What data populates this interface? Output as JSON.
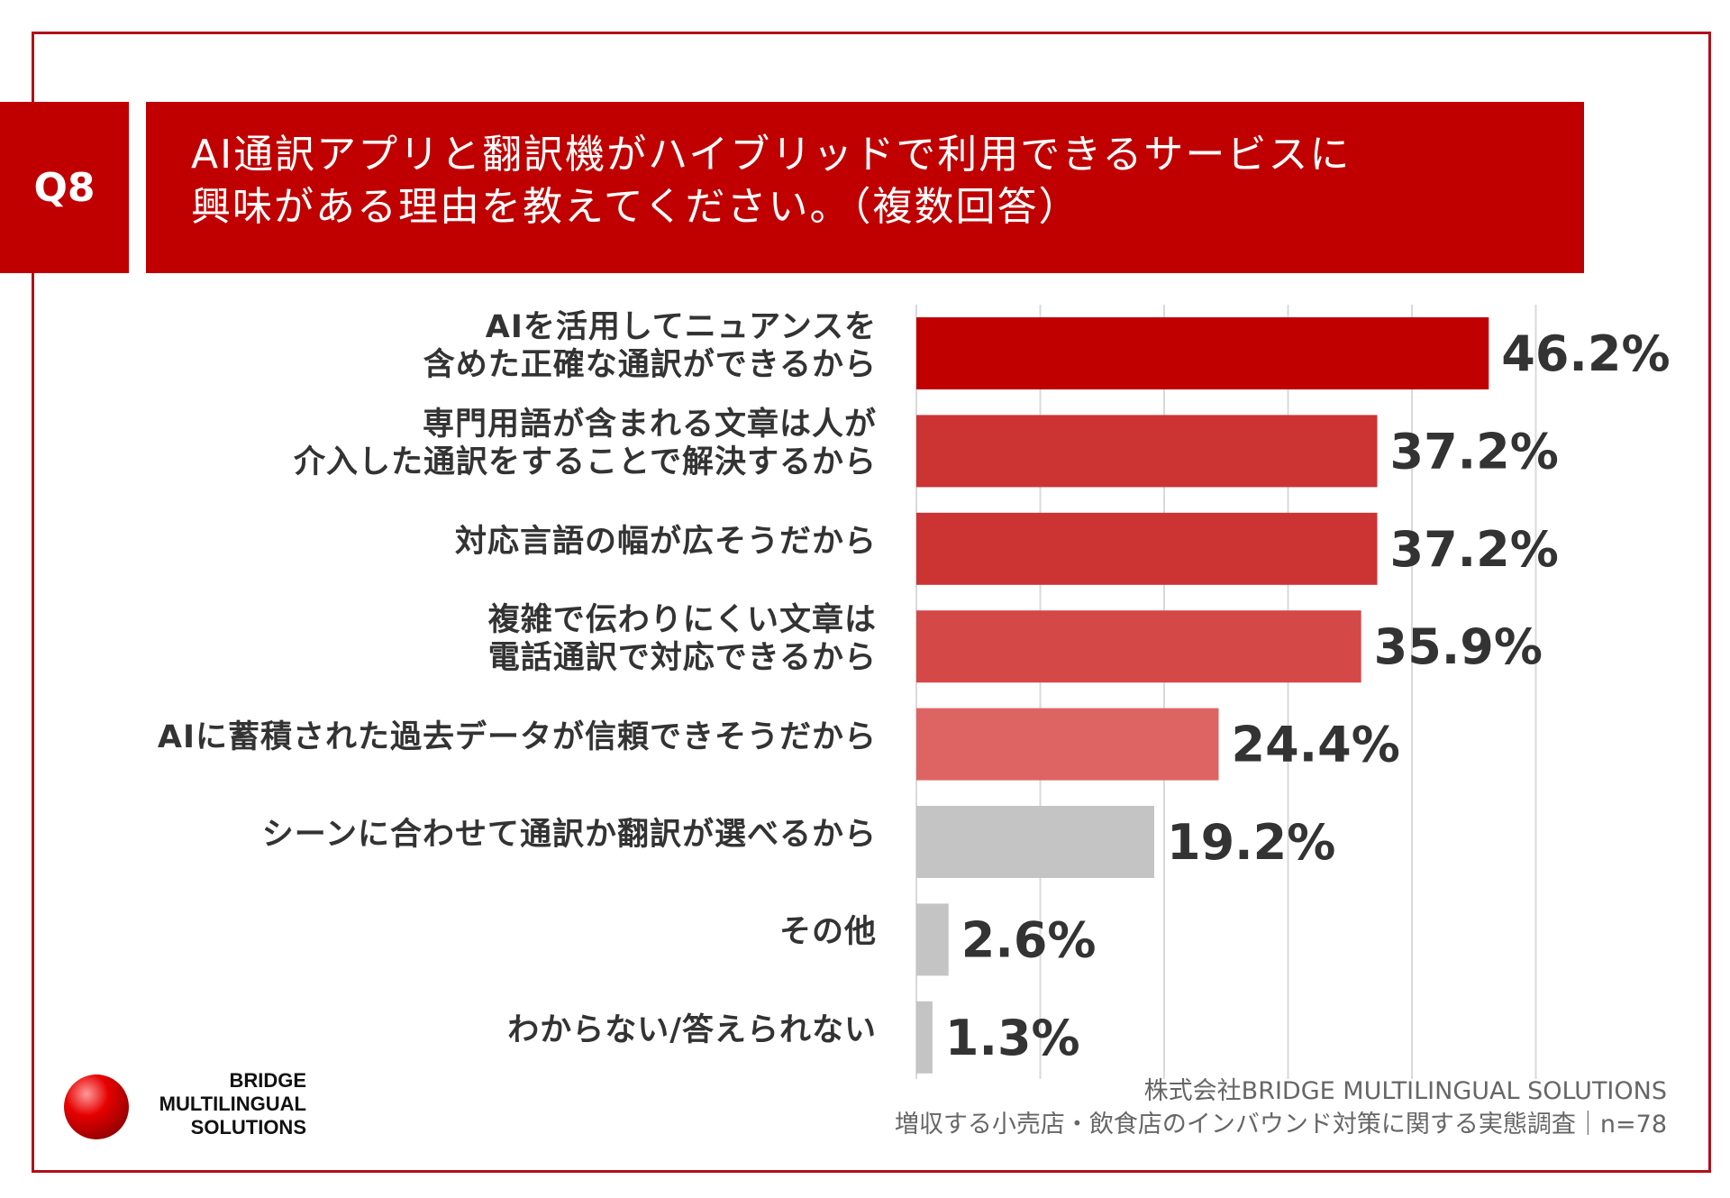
{
  "question": {
    "badge": "Q8",
    "title_line1": "AI通訳アプリと翻訳機がハイブリッドで利用できるサービスに",
    "title_line2": "興味がある理由を教えてください。（複数回答）",
    "accent_color": "#c00000"
  },
  "chart_data": {
    "type": "bar",
    "orientation": "horizontal",
    "title": "AI通訳アプリと翻訳機がハイブリッドで利用できるサービスに興味がある理由を教えてください。（複数回答）",
    "xlim": [
      0,
      50
    ],
    "grid": true,
    "unit": "%",
    "categories": [
      [
        "AIを活用してニュアンスを",
        "含めた正確な通訳ができるから"
      ],
      [
        "専門用語が含まれる文章は人が",
        "介入した通訳をすることで解決するから"
      ],
      [
        "対応言語の幅が広そうだから"
      ],
      [
        "複雑で伝わりにくい文章は",
        "電話通訳で対応できるから"
      ],
      [
        "AIに蓄積された過去データが信頼できそうだから"
      ],
      [
        "シーンに合わせて通訳か翻訳が選べるから"
      ],
      [
        "その他"
      ],
      [
        "わからない/答えられない"
      ]
    ],
    "values": [
      46.2,
      37.2,
      37.2,
      35.9,
      24.4,
      19.2,
      2.6,
      1.3
    ],
    "value_labels": [
      "46.2%",
      "37.2%",
      "37.2%",
      "35.9%",
      "24.4%",
      "19.2%",
      "2.6%",
      "1.3%"
    ],
    "bar_colors": [
      "#c00000",
      "#cc3333",
      "#cc3333",
      "#d54848",
      "#de6464",
      "#c4c4c4",
      "#c4c4c4",
      "#c4c4c4"
    ]
  },
  "logo": {
    "line1": "BRIDGE",
    "line2": "MULTILINGUAL",
    "line3": "SOLUTIONS"
  },
  "footer": {
    "company": "株式会社BRIDGE MULTILINGUAL SOLUTIONS",
    "survey": "増収する小売店・飲食店のインバウンド対策に関する実態調査｜n=78"
  }
}
